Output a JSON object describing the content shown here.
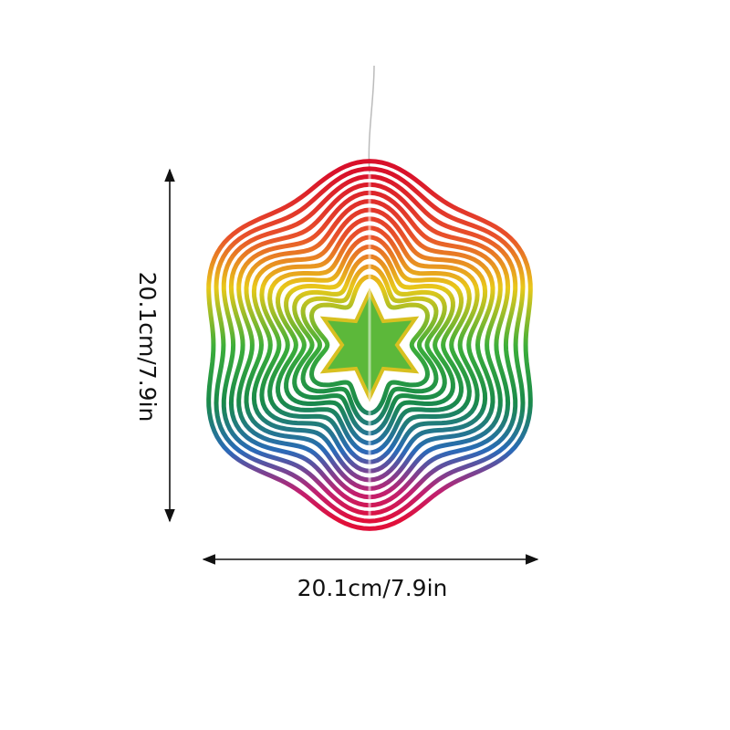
{
  "dimensions": {
    "height": "20.1cm/7.9in",
    "width": "20.1cm/7.9in"
  }
}
